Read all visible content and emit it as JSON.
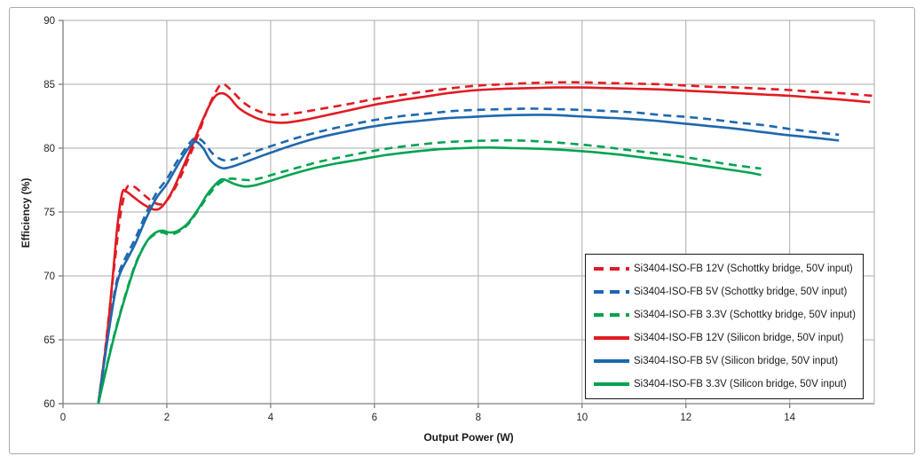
{
  "chart_data": {
    "type": "line",
    "title": "",
    "xlabel": "Output Power (W)",
    "ylabel": "Efficiency (%)",
    "xlim": [
      0,
      15.63
    ],
    "ylim": [
      60,
      90
    ],
    "x_ticks": [
      0,
      2,
      4,
      6,
      8,
      10,
      12,
      14
    ],
    "y_ticks": [
      60,
      65,
      70,
      75,
      80,
      85,
      90
    ],
    "grid": true,
    "grid_color": "#ababab",
    "axis_color": "#7f7f7f",
    "legend_position": "inside-right-bottom",
    "series": [
      {
        "name": "Si3404-ISO-FB 12V (Schottky bridge, 50V input)",
        "color": "#e11b22",
        "style": "dashed",
        "points": [
          [
            0.68,
            60
          ],
          [
            0.8,
            63.8
          ],
          [
            0.9,
            67.5
          ],
          [
            1.0,
            71.2
          ],
          [
            1.1,
            74.6
          ],
          [
            1.2,
            76.6
          ],
          [
            1.28,
            77.1
          ],
          [
            1.4,
            76.9
          ],
          [
            1.6,
            76.2
          ],
          [
            1.75,
            75.75
          ],
          [
            1.88,
            75.6
          ],
          [
            2.0,
            75.9
          ],
          [
            2.2,
            77.2
          ],
          [
            2.4,
            79.0
          ],
          [
            2.6,
            81.0
          ],
          [
            2.8,
            83.2
          ],
          [
            3.0,
            84.8
          ],
          [
            3.1,
            85.0
          ],
          [
            3.25,
            84.5
          ],
          [
            3.5,
            83.5
          ],
          [
            3.8,
            82.85
          ],
          [
            4.1,
            82.6
          ],
          [
            4.5,
            82.75
          ],
          [
            5.0,
            83.1
          ],
          [
            5.5,
            83.45
          ],
          [
            6.0,
            83.85
          ],
          [
            6.5,
            84.15
          ],
          [
            7.0,
            84.45
          ],
          [
            7.5,
            84.7
          ],
          [
            8.0,
            84.9
          ],
          [
            8.5,
            85.0
          ],
          [
            9.0,
            85.1
          ],
          [
            9.5,
            85.15
          ],
          [
            10.0,
            85.15
          ],
          [
            10.5,
            85.1
          ],
          [
            11.0,
            85.05
          ],
          [
            11.5,
            85.0
          ],
          [
            12.0,
            84.9
          ],
          [
            12.5,
            84.8
          ],
          [
            13.0,
            84.75
          ],
          [
            13.5,
            84.65
          ],
          [
            14.0,
            84.55
          ],
          [
            14.5,
            84.4
          ],
          [
            15.0,
            84.3
          ],
          [
            15.6,
            84.1
          ]
        ]
      },
      {
        "name": "Si3404-ISO-FB 5V (Schottky bridge, 50V input)",
        "color": "#1e68ae",
        "style": "dashed",
        "points": [
          [
            0.68,
            60
          ],
          [
            0.85,
            65
          ],
          [
            1.0,
            68.9
          ],
          [
            1.1,
            70.5
          ],
          [
            1.25,
            71.8
          ],
          [
            1.4,
            73.0
          ],
          [
            1.6,
            74.9
          ],
          [
            1.8,
            76.5
          ],
          [
            2.0,
            77.6
          ],
          [
            2.2,
            79.0
          ],
          [
            2.4,
            80.2
          ],
          [
            2.55,
            80.8
          ],
          [
            2.7,
            80.5
          ],
          [
            2.9,
            79.5
          ],
          [
            3.1,
            79.05
          ],
          [
            3.3,
            79.15
          ],
          [
            3.6,
            79.6
          ],
          [
            4.0,
            80.15
          ],
          [
            4.5,
            80.8
          ],
          [
            5.0,
            81.35
          ],
          [
            5.5,
            81.8
          ],
          [
            6.0,
            82.2
          ],
          [
            6.5,
            82.5
          ],
          [
            7.0,
            82.7
          ],
          [
            7.5,
            82.9
          ],
          [
            8.0,
            83.0
          ],
          [
            8.5,
            83.05
          ],
          [
            9.0,
            83.1
          ],
          [
            9.5,
            83.05
          ],
          [
            10.0,
            83.0
          ],
          [
            10.5,
            82.9
          ],
          [
            11.0,
            82.8
          ],
          [
            11.5,
            82.6
          ],
          [
            12.0,
            82.45
          ],
          [
            12.5,
            82.25
          ],
          [
            13.0,
            82.0
          ],
          [
            13.5,
            81.8
          ],
          [
            14.0,
            81.5
          ],
          [
            14.5,
            81.25
          ],
          [
            14.95,
            81.05
          ]
        ]
      },
      {
        "name": "Si3404-ISO-FB 3.3V (Schottky bridge, 50V input)",
        "color": "#00a350",
        "style": "dashed",
        "points": [
          [
            0.68,
            60
          ],
          [
            0.85,
            63.1
          ],
          [
            1.0,
            65.6
          ],
          [
            1.2,
            68.5
          ],
          [
            1.4,
            71.0
          ],
          [
            1.6,
            72.6
          ],
          [
            1.75,
            73.2
          ],
          [
            1.9,
            73.4
          ],
          [
            2.05,
            73.25
          ],
          [
            2.2,
            73.4
          ],
          [
            2.4,
            74.0
          ],
          [
            2.6,
            75.1
          ],
          [
            2.8,
            76.3
          ],
          [
            3.0,
            77.2
          ],
          [
            3.2,
            77.6
          ],
          [
            3.4,
            77.55
          ],
          [
            3.6,
            77.5
          ],
          [
            3.8,
            77.65
          ],
          [
            4.1,
            78.0
          ],
          [
            4.5,
            78.45
          ],
          [
            4.9,
            78.9
          ],
          [
            5.3,
            79.25
          ],
          [
            5.8,
            79.65
          ],
          [
            6.3,
            80.0
          ],
          [
            6.8,
            80.25
          ],
          [
            7.3,
            80.45
          ],
          [
            7.8,
            80.55
          ],
          [
            8.3,
            80.6
          ],
          [
            8.8,
            80.6
          ],
          [
            9.3,
            80.5
          ],
          [
            9.8,
            80.35
          ],
          [
            10.3,
            80.15
          ],
          [
            10.8,
            79.9
          ],
          [
            11.3,
            79.65
          ],
          [
            11.8,
            79.4
          ],
          [
            12.3,
            79.1
          ],
          [
            12.8,
            78.75
          ],
          [
            13.45,
            78.4
          ]
        ]
      },
      {
        "name": "Si3404-ISO-FB 12V (Silicon bridge, 50V input)",
        "color": "#e11b22",
        "style": "solid",
        "points": [
          [
            0.68,
            60
          ],
          [
            0.84,
            65
          ],
          [
            0.96,
            70
          ],
          [
            1.05,
            74
          ],
          [
            1.14,
            76.5
          ],
          [
            1.22,
            76.6
          ],
          [
            1.35,
            76.2
          ],
          [
            1.55,
            75.6
          ],
          [
            1.75,
            75.2
          ],
          [
            1.9,
            75.4
          ],
          [
            2.1,
            76.6
          ],
          [
            2.3,
            78.4
          ],
          [
            2.5,
            80.3
          ],
          [
            2.7,
            82.3
          ],
          [
            2.9,
            83.9
          ],
          [
            3.05,
            84.3
          ],
          [
            3.2,
            84.0
          ],
          [
            3.4,
            83.1
          ],
          [
            3.7,
            82.4
          ],
          [
            4.0,
            82.05
          ],
          [
            4.3,
            82.0
          ],
          [
            4.7,
            82.25
          ],
          [
            5.1,
            82.6
          ],
          [
            5.5,
            82.95
          ],
          [
            6.0,
            83.4
          ],
          [
            6.5,
            83.75
          ],
          [
            7.0,
            84.05
          ],
          [
            7.5,
            84.35
          ],
          [
            8.0,
            84.55
          ],
          [
            8.5,
            84.65
          ],
          [
            9.0,
            84.7
          ],
          [
            9.5,
            84.75
          ],
          [
            10.0,
            84.75
          ],
          [
            10.5,
            84.7
          ],
          [
            11.0,
            84.65
          ],
          [
            11.5,
            84.6
          ],
          [
            12.0,
            84.5
          ],
          [
            12.5,
            84.4
          ],
          [
            13.0,
            84.3
          ],
          [
            13.5,
            84.2
          ],
          [
            14.0,
            84.1
          ],
          [
            14.5,
            83.95
          ],
          [
            15.0,
            83.8
          ],
          [
            15.55,
            83.6
          ]
        ]
      },
      {
        "name": "Si3404-ISO-FB 5V (Silicon bridge, 50V input)",
        "color": "#1e68ae",
        "style": "solid",
        "points": [
          [
            0.68,
            60
          ],
          [
            0.85,
            64.8
          ],
          [
            1.0,
            68.6
          ],
          [
            1.1,
            70.2
          ],
          [
            1.25,
            71.4
          ],
          [
            1.4,
            72.6
          ],
          [
            1.6,
            74.5
          ],
          [
            1.8,
            76.1
          ],
          [
            2.0,
            77.2
          ],
          [
            2.2,
            78.6
          ],
          [
            2.4,
            79.9
          ],
          [
            2.55,
            80.5
          ],
          [
            2.7,
            80.0
          ],
          [
            2.85,
            79.0
          ],
          [
            3.05,
            78.45
          ],
          [
            3.25,
            78.55
          ],
          [
            3.5,
            78.9
          ],
          [
            3.9,
            79.5
          ],
          [
            4.4,
            80.2
          ],
          [
            4.9,
            80.8
          ],
          [
            5.4,
            81.25
          ],
          [
            5.9,
            81.65
          ],
          [
            6.4,
            81.95
          ],
          [
            6.9,
            82.15
          ],
          [
            7.4,
            82.35
          ],
          [
            7.9,
            82.45
          ],
          [
            8.4,
            82.55
          ],
          [
            8.9,
            82.6
          ],
          [
            9.4,
            82.6
          ],
          [
            9.9,
            82.5
          ],
          [
            10.4,
            82.4
          ],
          [
            10.9,
            82.3
          ],
          [
            11.4,
            82.15
          ],
          [
            11.9,
            81.95
          ],
          [
            12.4,
            81.75
          ],
          [
            12.9,
            81.55
          ],
          [
            13.4,
            81.3
          ],
          [
            13.9,
            81.05
          ],
          [
            14.4,
            80.85
          ],
          [
            14.95,
            80.6
          ]
        ]
      },
      {
        "name": "Si3404-ISO-FB 3.3V (Silicon bridge, 50V input)",
        "color": "#00a350",
        "style": "solid",
        "points": [
          [
            0.68,
            60
          ],
          [
            0.85,
            63.0
          ],
          [
            1.0,
            65.5
          ],
          [
            1.2,
            68.4
          ],
          [
            1.4,
            70.9
          ],
          [
            1.6,
            72.6
          ],
          [
            1.75,
            73.3
          ],
          [
            1.9,
            73.55
          ],
          [
            2.05,
            73.4
          ],
          [
            2.2,
            73.5
          ],
          [
            2.4,
            74.1
          ],
          [
            2.6,
            75.2
          ],
          [
            2.8,
            76.5
          ],
          [
            3.0,
            77.4
          ],
          [
            3.1,
            77.55
          ],
          [
            3.3,
            77.2
          ],
          [
            3.5,
            77.0
          ],
          [
            3.7,
            77.1
          ],
          [
            4.0,
            77.45
          ],
          [
            4.4,
            77.95
          ],
          [
            4.8,
            78.4
          ],
          [
            5.2,
            78.75
          ],
          [
            5.7,
            79.1
          ],
          [
            6.2,
            79.45
          ],
          [
            6.7,
            79.7
          ],
          [
            7.2,
            79.9
          ],
          [
            7.7,
            80.0
          ],
          [
            8.2,
            80.05
          ],
          [
            8.7,
            80.0
          ],
          [
            9.2,
            79.95
          ],
          [
            9.7,
            79.85
          ],
          [
            10.2,
            79.7
          ],
          [
            10.7,
            79.5
          ],
          [
            11.2,
            79.25
          ],
          [
            11.7,
            79.0
          ],
          [
            12.2,
            78.7
          ],
          [
            12.7,
            78.4
          ],
          [
            13.2,
            78.1
          ],
          [
            13.45,
            77.9
          ]
        ]
      }
    ]
  }
}
